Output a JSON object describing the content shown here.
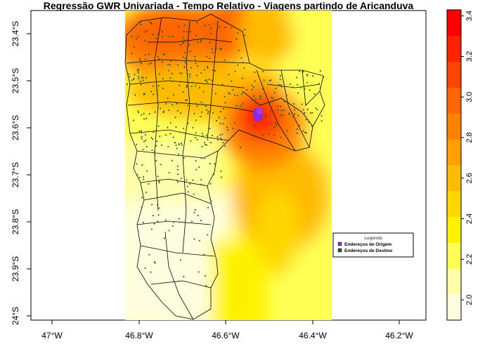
{
  "title": "Regressão GWR Univariada - Tempo Relativo - Viagens partindo de Aricanduva",
  "axes": {
    "x_ticks": [
      "47°W",
      "46.8°W",
      "46.6°W",
      "46.4°W",
      "46.2°W"
    ],
    "y_ticks": [
      "23.4°S",
      "23.5°S",
      "23.6°S",
      "23.7°S",
      "23.8°S",
      "23.9°S",
      "24°S"
    ]
  },
  "colorbar": {
    "ticks": [
      "2.0",
      "2.2",
      "2.4",
      "2.6",
      "2.8",
      "3.0",
      "3.2",
      "3.4"
    ],
    "min": 1.9,
    "max": 3.43,
    "colors": [
      "#FFFFE0",
      "#FFFFAA",
      "#FFFF55",
      "#FFF200",
      "#FFD700",
      "#FFBB00",
      "#FF9F00",
      "#FF8300",
      "#FF6600",
      "#FF4400",
      "#FF2200",
      "#FF0000"
    ]
  },
  "legend": {
    "title": "Legenda",
    "items": [
      {
        "label": "Endereços de Origem",
        "color": "#8A2BE2"
      },
      {
        "label": "Endereços de Destino",
        "color": "#1E5C1E"
      }
    ]
  }
}
